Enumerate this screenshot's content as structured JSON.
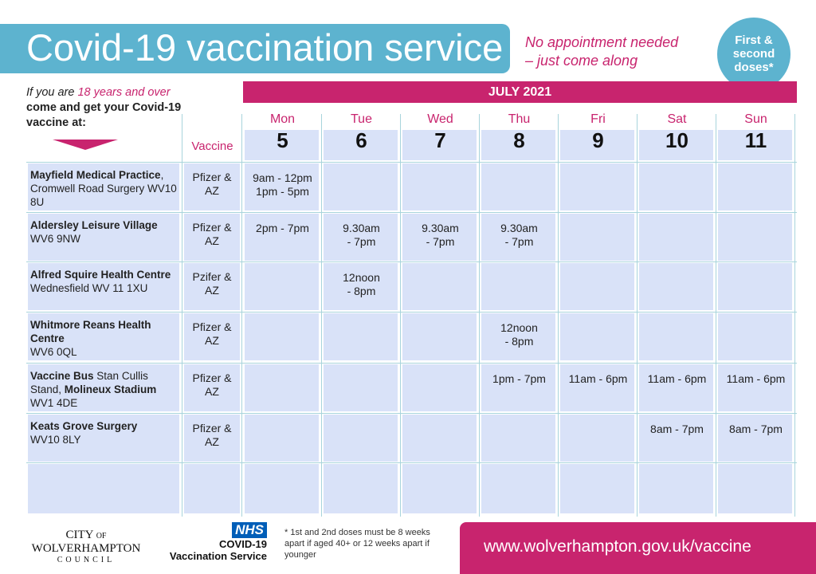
{
  "header": {
    "title": "Covid-19 vaccination service",
    "tagline": [
      "No appointment needed",
      "– just come along"
    ],
    "badge": [
      "First &",
      "second",
      "doses*"
    ]
  },
  "intro": {
    "lead": "If you are",
    "highlight": "18 years and over",
    "rest": "come and get your Covid-19 vaccine at:"
  },
  "table": {
    "month": "JULY 2021",
    "vaccine_header": "Vaccine",
    "days": [
      {
        "name": "Mon",
        "date": 5
      },
      {
        "name": "Tue",
        "date": 6
      },
      {
        "name": "Wed",
        "date": 7
      },
      {
        "name": "Thu",
        "date": 8
      },
      {
        "name": "Fri",
        "date": 9
      },
      {
        "name": "Sat",
        "date": 10
      },
      {
        "name": "Sun",
        "date": 11
      }
    ],
    "rows": [
      {
        "name": [
          {
            "text": "Mayfield Medical Practice",
            "bold": true
          },
          {
            "text": ", Cromwell Road Surgery WV10 8U",
            "bold": false
          }
        ],
        "vaccine": "Pfizer & AZ",
        "times": [
          [
            "9am - 12pm",
            "1pm - 5pm"
          ],
          null,
          null,
          null,
          null,
          null,
          null
        ]
      },
      {
        "name": [
          {
            "text": "Aldersley Leisure Village",
            "bold": true
          },
          {
            "text": "WV6 9NW",
            "bold": false
          }
        ],
        "vaccine": "Pfizer & AZ",
        "times": [
          [
            "2pm - 7pm"
          ],
          [
            "9.30am",
            "- 7pm"
          ],
          [
            "9.30am",
            "- 7pm"
          ],
          [
            "9.30am",
            "- 7pm"
          ],
          null,
          null,
          null
        ]
      },
      {
        "name": [
          {
            "text": "Alfred Squire Health Centre",
            "bold": true
          },
          {
            "text": "Wednesfield WV 11 1XU",
            "bold": false
          }
        ],
        "vaccine": "Pzifer & AZ",
        "times": [
          null,
          [
            "12noon",
            "- 8pm"
          ],
          null,
          null,
          null,
          null,
          null
        ]
      },
      {
        "name": [
          {
            "text": "Whitmore Reans Health Centre",
            "bold": true
          },
          {
            "text": "WV6 0QL",
            "bold": false
          }
        ],
        "vaccine": "Pfizer & AZ",
        "times": [
          null,
          null,
          null,
          [
            "12noon",
            "- 8pm"
          ],
          null,
          null,
          null
        ]
      },
      {
        "name": [
          {
            "text": "Vaccine Bus",
            "bold": true
          },
          {
            "text": " Stan Cullis Stand, ",
            "bold": false
          },
          {
            "text": "Molineux Stadium",
            "bold": true
          },
          {
            "text": " WV1 4DE",
            "bold": false
          }
        ],
        "vaccine": "Pfizer & AZ",
        "times": [
          null,
          null,
          null,
          [
            "1pm - 7pm"
          ],
          [
            "11am - 6pm"
          ],
          [
            "11am - 6pm"
          ],
          [
            "11am - 6pm"
          ]
        ]
      },
      {
        "name": [
          {
            "text": "Keats Grove Surgery",
            "bold": true
          },
          {
            "text": "WV10 8LY",
            "bold": false
          }
        ],
        "vaccine": "Pfizer & AZ",
        "times": [
          null,
          null,
          null,
          null,
          null,
          [
            "8am - 7pm"
          ],
          [
            "8am - 7pm"
          ]
        ]
      }
    ]
  },
  "footer": {
    "council": [
      "CITY",
      "OF",
      "WOLVERHAMPTON",
      "COUNCIL"
    ],
    "nhs": [
      "NHS",
      "COVID-19",
      "Vaccination Service"
    ],
    "note": "* 1st and 2nd doses must be 8 weeks apart if aged 40+ or 12 weeks apart if younger",
    "url": "www.wolverhampton.gov.uk/vaccine"
  }
}
